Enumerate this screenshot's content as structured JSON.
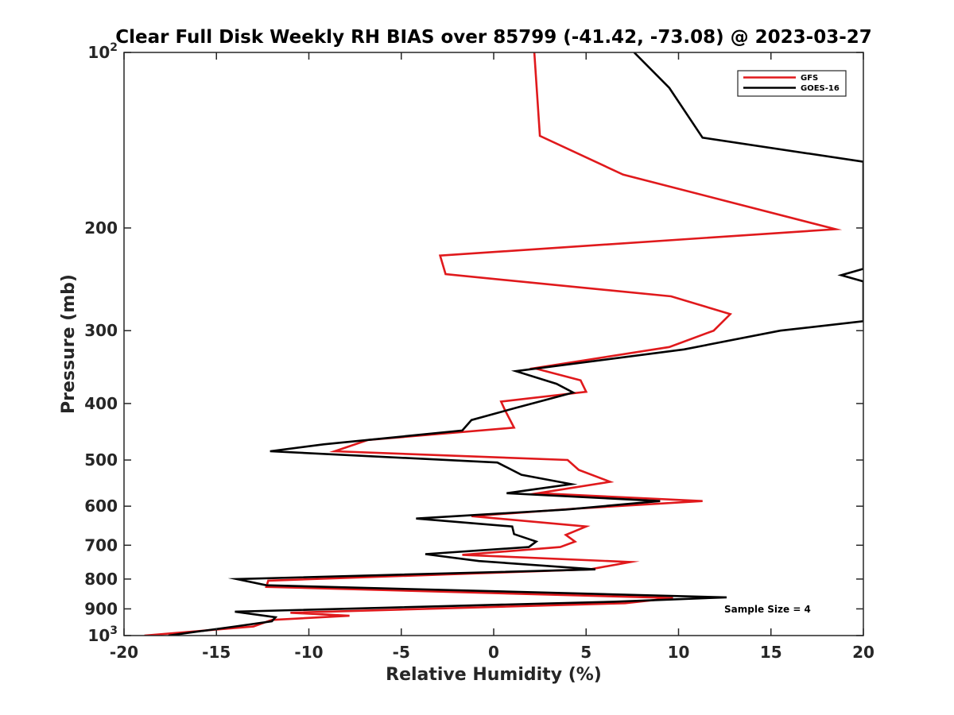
{
  "chart_data": {
    "type": "line",
    "title": "Clear Full Disk Weekly RH BIAS over 85799 (-41.42, -73.08) @ 2023-03-27",
    "xlabel": "Relative Humidity (%)",
    "ylabel": "Pressure (mb)",
    "xlim": [
      -20,
      20
    ],
    "ylim": [
      100,
      1000
    ],
    "y_scale": "log",
    "y_reversed": true,
    "x_ticks": [
      "-20",
      "-15",
      "-10",
      "-5",
      "0",
      "5",
      "10",
      "15",
      "20"
    ],
    "y_ticks": [
      {
        "value": 100,
        "base": "10",
        "exp": "2"
      },
      {
        "value": 200,
        "label": "200"
      },
      {
        "value": 300,
        "label": "300"
      },
      {
        "value": 400,
        "label": "400"
      },
      {
        "value": 500,
        "label": "500"
      },
      {
        "value": 600,
        "label": "600"
      },
      {
        "value": 700,
        "label": "700"
      },
      {
        "value": 800,
        "label": "800"
      },
      {
        "value": 900,
        "label": "900"
      },
      {
        "value": 1000,
        "base": "10",
        "exp": "3"
      }
    ],
    "legend_position": "top-right",
    "grid": false,
    "annotation": "Sample Size = 4",
    "series": [
      {
        "name": "GFS",
        "color": "#e0191c",
        "points": [
          [
            2.2,
            100
          ],
          [
            2.5,
            139
          ],
          [
            7.0,
            162
          ],
          [
            18.5,
            201
          ],
          [
            -2.9,
            223
          ],
          [
            -2.6,
            240
          ],
          [
            9.6,
            262
          ],
          [
            12.8,
            281
          ],
          [
            11.9,
            300
          ],
          [
            9.5,
            320
          ],
          [
            2.2,
            348
          ],
          [
            4.7,
            365
          ],
          [
            5.0,
            382
          ],
          [
            0.4,
            397
          ],
          [
            0.6,
            410
          ],
          [
            1.1,
            440
          ],
          [
            -6.8,
            462
          ],
          [
            -8.6,
            483
          ],
          [
            4.0,
            500
          ],
          [
            4.6,
            520
          ],
          [
            6.3,
            545
          ],
          [
            2.4,
            570
          ],
          [
            11.3,
            588
          ],
          [
            4.4,
            606
          ],
          [
            -1.2,
            624
          ],
          [
            5.0,
            650
          ],
          [
            3.9,
            672
          ],
          [
            4.4,
            690
          ],
          [
            3.6,
            705
          ],
          [
            -1.7,
            727
          ],
          [
            7.4,
            748
          ],
          [
            5.2,
            770
          ],
          [
            -12.2,
            805
          ],
          [
            -12.3,
            825
          ],
          [
            9.7,
            862
          ],
          [
            7.1,
            880
          ],
          [
            -11.0,
            914
          ],
          [
            -7.8,
            925
          ],
          [
            -12.0,
            940
          ],
          [
            -13.0,
            965
          ],
          [
            -18.9,
            1000
          ]
        ]
      },
      {
        "name": "GOES-16",
        "color": "#000000",
        "points": [
          [
            7.6,
            100
          ],
          [
            9.5,
            115
          ],
          [
            11.3,
            140
          ],
          [
            20,
            154
          ],
          [
            20,
            235
          ],
          [
            18.8,
            241
          ],
          [
            20,
            247
          ],
          [
            20,
            289
          ],
          [
            15.5,
            300
          ],
          [
            10.3,
            323
          ],
          [
            1.2,
            352
          ],
          [
            3.4,
            370
          ],
          [
            4.3,
            383
          ],
          [
            1.2,
            407
          ],
          [
            -1.2,
            427
          ],
          [
            -1.7,
            445
          ],
          [
            -9.2,
            470
          ],
          [
            -12.1,
            483
          ],
          [
            0.2,
            505
          ],
          [
            1.5,
            530
          ],
          [
            4.2,
            550
          ],
          [
            0.7,
            570
          ],
          [
            9.0,
            588
          ],
          [
            3.9,
            608
          ],
          [
            -4.2,
            630
          ],
          [
            1.0,
            650
          ],
          [
            1.1,
            670
          ],
          [
            2.3,
            690
          ],
          [
            1.9,
            705
          ],
          [
            -3.7,
            725
          ],
          [
            -0.8,
            745
          ],
          [
            5.5,
            770
          ],
          [
            -13.9,
            800
          ],
          [
            -12.3,
            820
          ],
          [
            12.6,
            860
          ],
          [
            6.5,
            875
          ],
          [
            -14.0,
            910
          ],
          [
            -11.8,
            930
          ],
          [
            -12.0,
            945
          ],
          [
            -14.0,
            965
          ],
          [
            -17.6,
            1000
          ]
        ]
      }
    ]
  }
}
